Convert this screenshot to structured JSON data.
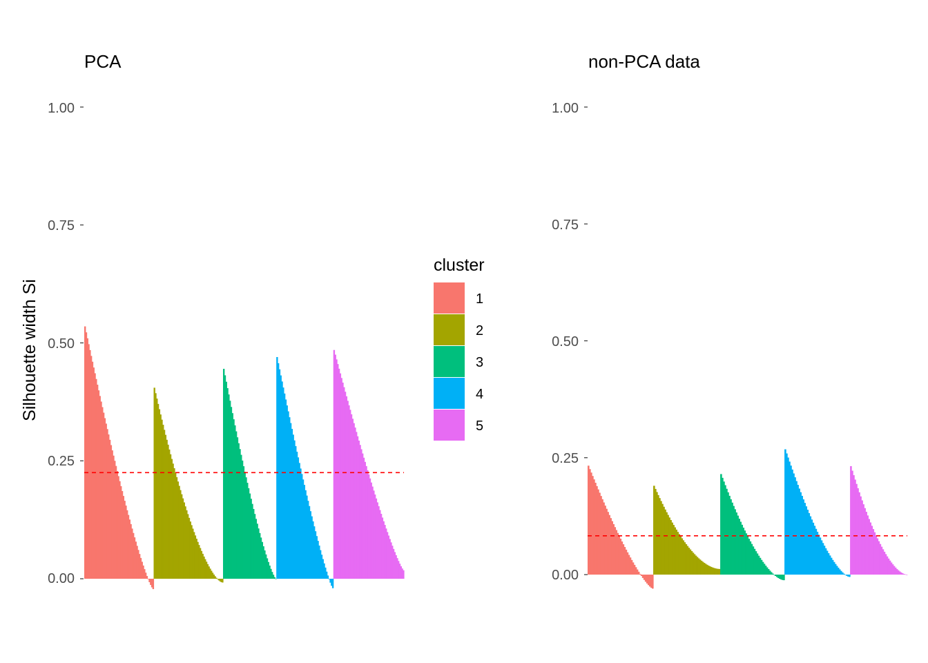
{
  "chart_data": [
    {
      "type": "bar",
      "title": "PCA",
      "ylabel": "Silhouette width Si",
      "ylim": [
        0,
        1
      ],
      "yticks": [
        "0.00",
        "0.25",
        "0.50",
        "0.75",
        "1.00"
      ],
      "average_width": 0.225,
      "series": [
        {
          "name": "1",
          "color": "#F8766D",
          "count": 56,
          "start": 0.535,
          "end": -0.022,
          "shape": 1.25
        },
        {
          "name": "2",
          "color": "#A3A500",
          "count": 56,
          "start": 0.405,
          "end": -0.008,
          "shape": 1.55
        },
        {
          "name": "3",
          "color": "#00BF7D",
          "count": 43,
          "start": 0.445,
          "end": 0.0,
          "shape": 1.3
        },
        {
          "name": "4",
          "color": "#00B0F6",
          "count": 46,
          "start": 0.47,
          "end": -0.02,
          "shape": 1.2
        },
        {
          "name": "5",
          "color": "#E76BF3",
          "count": 57,
          "start": 0.485,
          "end": 0.018,
          "shape": 1.2
        }
      ]
    },
    {
      "type": "bar",
      "title": "non-PCA data",
      "ylabel": "",
      "ylim": [
        0,
        1
      ],
      "yticks": [
        "0.00",
        "0.25",
        "0.50",
        "0.75",
        "1.00"
      ],
      "average_width": 0.083,
      "series": [
        {
          "name": "1",
          "color": "#F8766D",
          "count": 47,
          "start": 0.233,
          "end": -0.03,
          "shape": 1.3
        },
        {
          "name": "2",
          "color": "#A3A500",
          "count": 48,
          "start": 0.19,
          "end": 0.012,
          "shape": 1.8
        },
        {
          "name": "3",
          "color": "#00BF7D",
          "count": 46,
          "start": 0.215,
          "end": -0.012,
          "shape": 1.6
        },
        {
          "name": "4",
          "color": "#00B0F6",
          "count": 47,
          "start": 0.268,
          "end": -0.005,
          "shape": 1.5
        },
        {
          "name": "5",
          "color": "#E76BF3",
          "count": 41,
          "start": 0.232,
          "end": 0.0,
          "shape": 1.7
        }
      ]
    }
  ],
  "legend": {
    "title": "cluster",
    "items": [
      {
        "label": "1",
        "color": "#F8766D"
      },
      {
        "label": "2",
        "color": "#A3A500"
      },
      {
        "label": "3",
        "color": "#00BF7D"
      },
      {
        "label": "4",
        "color": "#00B0F6"
      },
      {
        "label": "5",
        "color": "#E76BF3"
      }
    ]
  }
}
